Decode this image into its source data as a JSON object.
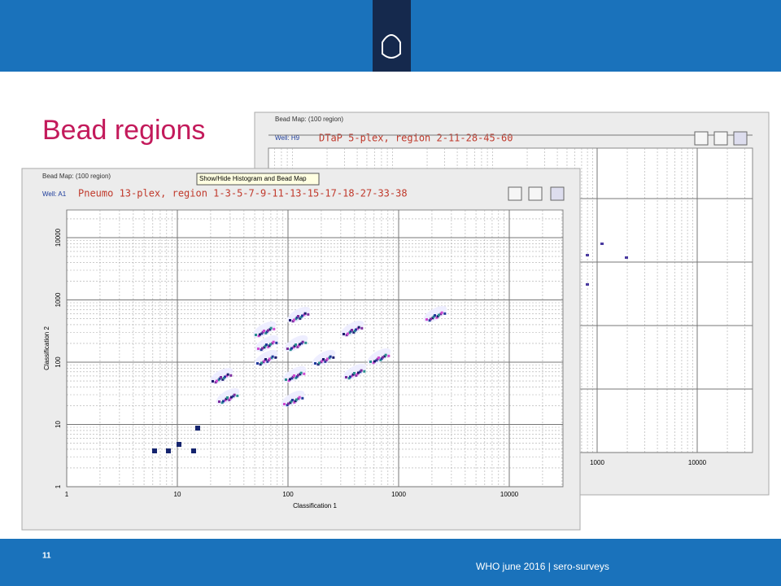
{
  "slide": {
    "title": "Bead regions",
    "number": "11",
    "footer": "WHO june 2016 | sero-surveys"
  },
  "back_window": {
    "header": "Bead Map: (100 region)",
    "well": "Well: H9",
    "assay": "DTaP 5-plex, region 2-11-28-45-60",
    "xticks": [
      1000,
      10000
    ]
  },
  "front_window": {
    "header": "Bead Map: (100 region)",
    "tooltip": "Show/Hide Histogram and Bead Map",
    "well": "Well: A1",
    "assay": "Pneumo 13-plex, region 1-3-5-7-9-11-13-15-17-18-27-33-38",
    "xlabel": "Classification 1",
    "ylabel": "Classification 2",
    "xticks": [
      1,
      10,
      100,
      1000,
      10000
    ],
    "yticks": [
      1,
      10,
      100,
      1000,
      10000
    ]
  }
}
